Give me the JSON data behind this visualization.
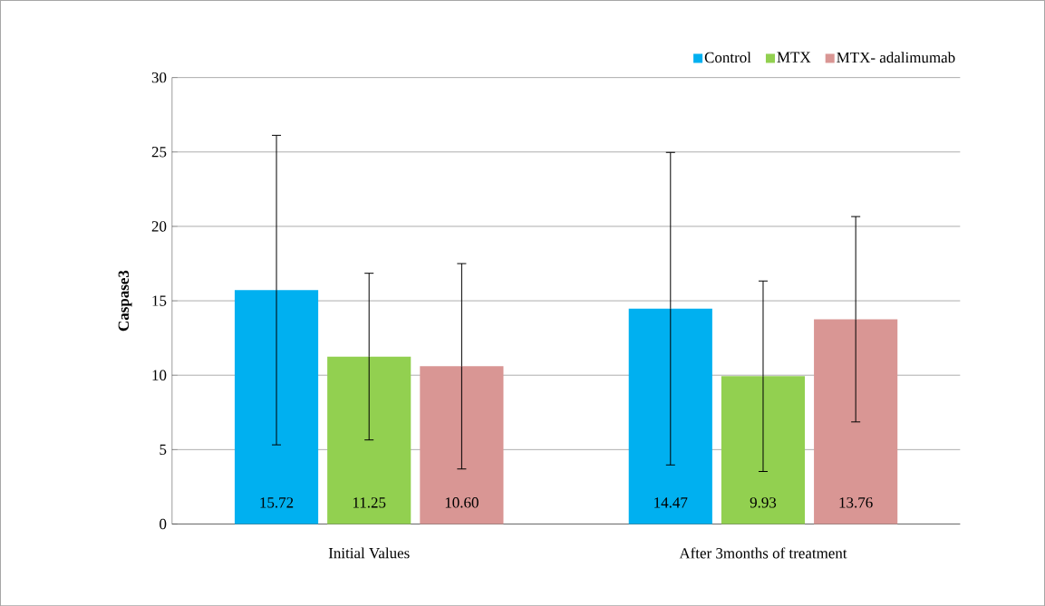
{
  "chart_data": {
    "type": "bar",
    "ylabel": "**Caspase3**",
    "categories": [
      "Initial Values",
      "After 3months of treatment"
    ],
    "series": [
      {
        "name": "Control",
        "color": "#00b0f0",
        "values": [
          15.72,
          14.47
        ],
        "errors": [
          10.4,
          10.5
        ],
        "value_labels": [
          "15.72",
          "14.47"
        ]
      },
      {
        "name": "MTX",
        "color": "#92d050",
        "values": [
          11.25,
          9.93
        ],
        "errors": [
          5.6,
          6.4
        ],
        "value_labels": [
          "11.25",
          "9.93"
        ]
      },
      {
        "name": "MTX- adalimumab",
        "color": "#d99694",
        "values": [
          10.6,
          13.76
        ],
        "errors": [
          6.9,
          6.9
        ],
        "value_labels": [
          "10.60",
          "13.76"
        ]
      }
    ],
    "ylim": [
      0,
      30
    ],
    "yticks": [
      0,
      5,
      10,
      15,
      20,
      25,
      30
    ],
    "grid": "y",
    "legend": "top right"
  }
}
